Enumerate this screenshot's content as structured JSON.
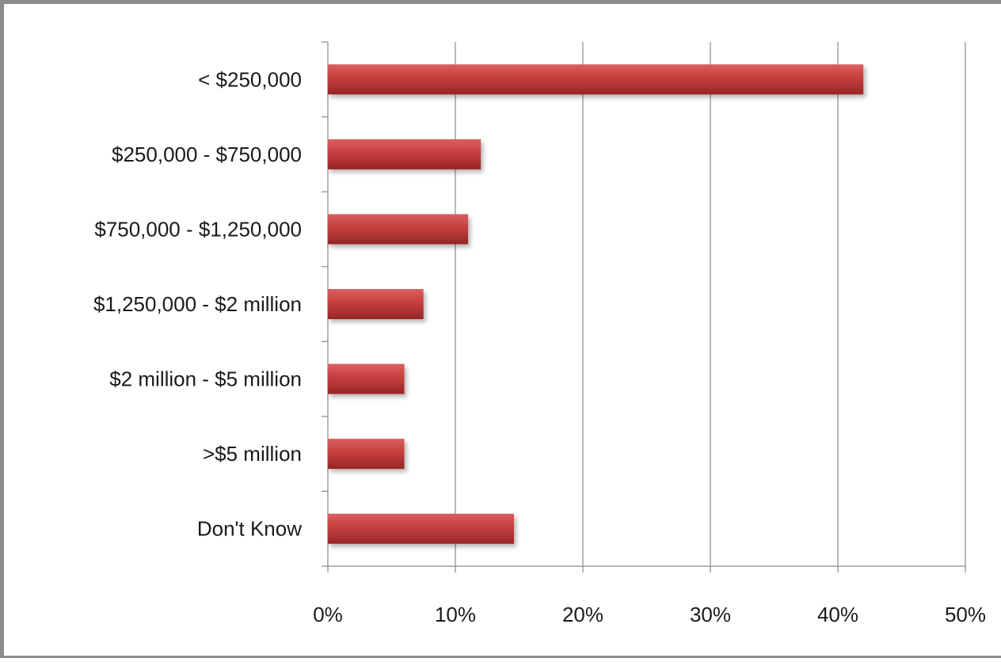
{
  "chart_data": {
    "type": "bar",
    "orientation": "horizontal",
    "title": "",
    "xlabel": "",
    "ylabel": "",
    "categories": [
      "< $250,000",
      "$250,000 - $750,000",
      "$750,000 - $1,250,000",
      "$1,250,000 - $2 million",
      "$2 million - $5 million",
      ">$5 million",
      "Don't Know"
    ],
    "values": [
      42,
      12,
      11,
      7.5,
      6,
      6,
      14.6
    ],
    "xlim": [
      0,
      50
    ],
    "x_ticks": [
      "0%",
      "10%",
      "20%",
      "30%",
      "40%",
      "50%"
    ],
    "grid": "vertical gridlines",
    "legend": "none",
    "bar_color": "#c0393b"
  }
}
